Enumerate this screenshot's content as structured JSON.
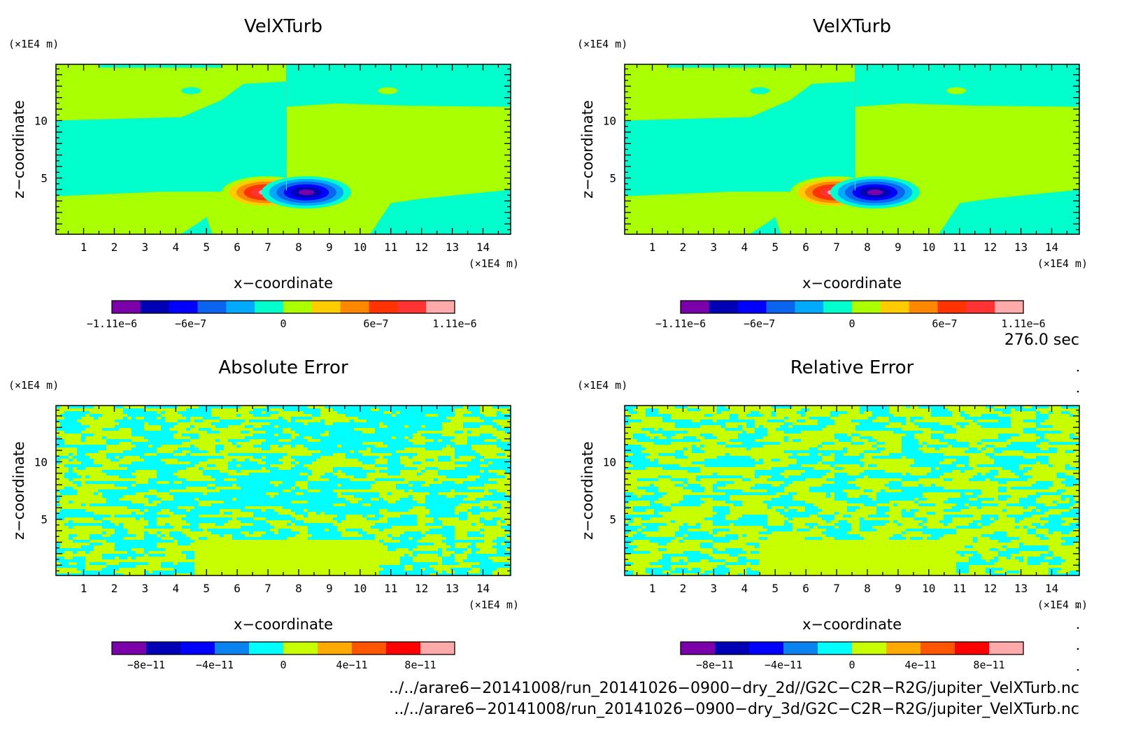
{
  "chart_data": [
    {
      "type": "heatmap",
      "title": "VelXTurb",
      "xlabel": "x−coordinate",
      "ylabel": "z−coordinate",
      "x_unit": "(×1E4 m)",
      "y_unit": "(×1E4 m)",
      "x_ticks": [
        1,
        2,
        3,
        4,
        5,
        6,
        7,
        8,
        9,
        10,
        11,
        12,
        13,
        14
      ],
      "y_ticks": [
        5,
        10
      ],
      "xlim": [
        0.1,
        14.9
      ],
      "ylim": [
        0.1,
        14.9
      ],
      "field": "velxturb",
      "colorbar": {
        "colors": [
          "#7a00aa",
          "#0000b4",
          "#0000ff",
          "#0a64f0",
          "#00aaff",
          "#00ffcc",
          "#aaff00",
          "#ffcc00",
          "#ff8800",
          "#ff3300",
          "#ff3333",
          "#ffaaaa"
        ],
        "tick_labels": [
          "−1.11e−6",
          "−6e−7",
          "0",
          "6e−7",
          "1.11e−6"
        ],
        "tick_values": [
          -1.11e-06,
          -6e-07,
          0,
          6e-07,
          1.11e-06
        ],
        "range": [
          -1.11e-06,
          1.11e-06
        ]
      }
    },
    {
      "type": "heatmap",
      "title": "VelXTurb",
      "xlabel": "x−coordinate",
      "ylabel": "z−coordinate",
      "x_unit": "(×1E4 m)",
      "y_unit": "(×1E4 m)",
      "x_ticks": [
        1,
        2,
        3,
        4,
        5,
        6,
        7,
        8,
        9,
        10,
        11,
        12,
        13,
        14
      ],
      "y_ticks": [
        5,
        10
      ],
      "xlim": [
        0.1,
        14.9
      ],
      "ylim": [
        0.1,
        14.9
      ],
      "field": "velxturb",
      "colorbar": {
        "colors": [
          "#7a00aa",
          "#0000b4",
          "#0000ff",
          "#0a64f0",
          "#00aaff",
          "#00ffcc",
          "#aaff00",
          "#ffcc00",
          "#ff8800",
          "#ff3300",
          "#ff3333",
          "#ffaaaa"
        ],
        "tick_labels": [
          "−1.11e−6",
          "−6e−7",
          "0",
          "6e−7",
          "1.11e−6"
        ],
        "tick_values": [
          -1.11e-06,
          -6e-07,
          0,
          6e-07,
          1.11e-06
        ],
        "range": [
          -1.11e-06,
          1.11e-06
        ]
      }
    },
    {
      "type": "heatmap",
      "title": "Absolute Error",
      "xlabel": "x−coordinate",
      "ylabel": "z−coordinate",
      "x_unit": "(×1E4 m)",
      "y_unit": "(×1E4 m)",
      "x_ticks": [
        1,
        2,
        3,
        4,
        5,
        6,
        7,
        8,
        9,
        10,
        11,
        12,
        13,
        14
      ],
      "y_ticks": [
        5,
        10
      ],
      "xlim": [
        0.1,
        14.9
      ],
      "ylim": [
        0.1,
        14.9
      ],
      "field": "noise_abs",
      "colorbar": {
        "colors": [
          "#7a00aa",
          "#0000b4",
          "#0000ff",
          "#0a82f0",
          "#00ffff",
          "#c8ff00",
          "#ffaa00",
          "#ff5500",
          "#ff0000",
          "#ffaaaa"
        ],
        "tick_labels": [
          "−8e−11",
          "−4e−11",
          "0",
          "4e−11",
          "8e−11"
        ],
        "tick_values": [
          -8e-11,
          -4e-11,
          0,
          4e-11,
          8e-11
        ],
        "range": [
          -1e-10,
          1e-10
        ]
      }
    },
    {
      "type": "heatmap",
      "title": "Relative Error",
      "xlabel": "x−coordinate",
      "ylabel": "z−coordinate",
      "x_unit": "(×1E4 m)",
      "y_unit": "(×1E4 m)",
      "x_ticks": [
        1,
        2,
        3,
        4,
        5,
        6,
        7,
        8,
        9,
        10,
        11,
        12,
        13,
        14
      ],
      "y_ticks": [
        5,
        10
      ],
      "xlim": [
        0.1,
        14.9
      ],
      "ylim": [
        0.1,
        14.9
      ],
      "field": "noise_rel",
      "colorbar": {
        "colors": [
          "#7a00aa",
          "#0000b4",
          "#0000ff",
          "#0a82f0",
          "#00ffff",
          "#c8ff00",
          "#ffaa00",
          "#ff5500",
          "#ff0000",
          "#ffaaaa"
        ],
        "tick_labels": [
          "−8e−11",
          "−4e−11",
          "0",
          "4e−11",
          "8e−11"
        ],
        "tick_values": [
          -8e-11,
          -4e-11,
          0,
          4e-11,
          8e-11
        ],
        "range": [
          -1e-10,
          1e-10
        ]
      }
    }
  ],
  "time_label": "276.0 sec",
  "footer": {
    "path1": "../../arare6−20141008/run_20141026−0900−dry_2d//G2C−C2R−R2G/jupiter_VelXTurb.nc",
    "path2": "../../arare6−20141008/run_20141026−0900−dry_3d/G2C−C2R−R2G/jupiter_VelXTurb.nc"
  }
}
